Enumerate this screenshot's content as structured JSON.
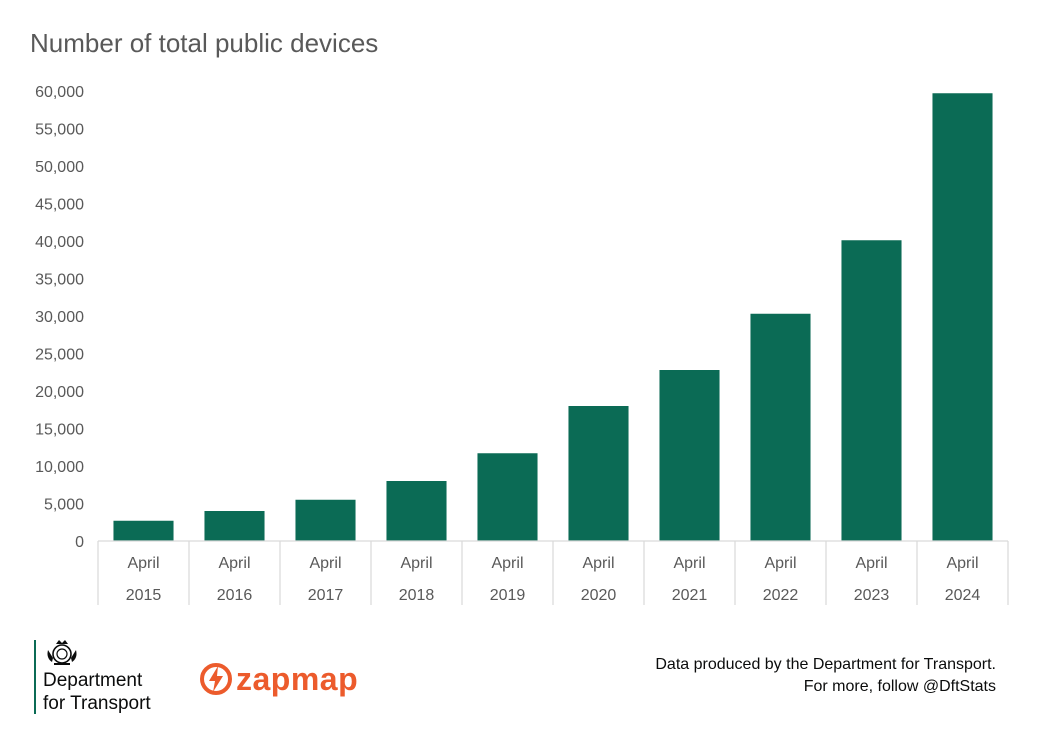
{
  "chart_data": {
    "type": "bar",
    "title": "Number of total public devices",
    "categories": [
      [
        "April",
        "2015"
      ],
      [
        "April",
        "2016"
      ],
      [
        "April",
        "2017"
      ],
      [
        "April",
        "2018"
      ],
      [
        "April",
        "2019"
      ],
      [
        "April",
        "2020"
      ],
      [
        "April",
        "2021"
      ],
      [
        "April",
        "2022"
      ],
      [
        "April",
        "2023"
      ],
      [
        "April",
        "2024"
      ]
    ],
    "values": [
      2700,
      4000,
      5500,
      8000,
      11700,
      18000,
      22800,
      30300,
      40100,
      59700
    ],
    "ylim": [
      0,
      60000
    ],
    "yticks": [
      "0",
      "5,000",
      "10,000",
      "15,000",
      "20,000",
      "25,000",
      "30,000",
      "35,000",
      "40,000",
      "45,000",
      "50,000",
      "55,000",
      "60,000"
    ],
    "bar_color": "#0b6b55",
    "grid": false,
    "legend": "none"
  },
  "footer": {
    "dept_name_line1": "Department",
    "dept_name_line2": "for Transport",
    "dept_icon": "royal-crest-icon",
    "zapmap_text": "zapmap",
    "zapmap_icon": "lightning-bolt-icon",
    "zapmap_color": "#ec5b2c",
    "credit_line1": "Data produced by the Department for Transport.",
    "credit_line2": "For more, follow @DftStats"
  }
}
